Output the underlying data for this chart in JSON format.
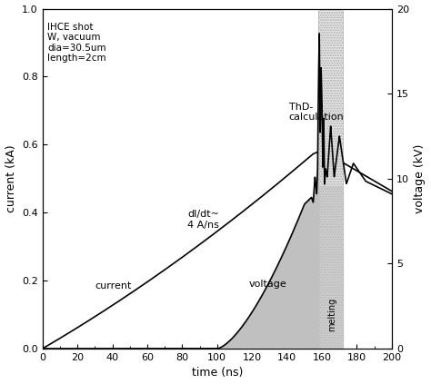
{
  "xlabel": "time (ns)",
  "ylabel_left": "current (kA)",
  "ylabel_right": "voltage (kV)",
  "xlim": [
    0,
    200
  ],
  "ylim_left": [
    0,
    1.0
  ],
  "ylim_right": [
    0,
    20
  ],
  "melting_start": 158,
  "melting_end": 172,
  "annotation_text": "IHCE shot\nW, vacuum\ndia=30.5um\nlength=2cm",
  "label_current": "current",
  "label_voltage": "voltage",
  "label_ThD": "ThD-\ncalculation",
  "label_dIdt": "dI/dt~\n4 A/ns",
  "background_color": "#ffffff",
  "line_color": "#000000",
  "fill_color": "#c0c0c0"
}
